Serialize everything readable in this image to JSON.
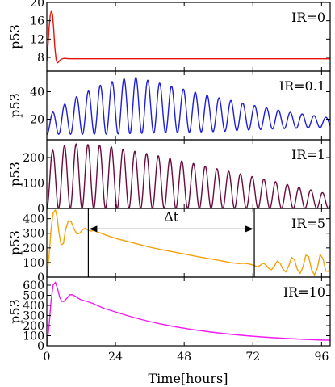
{
  "chart_data": {
    "type": "line",
    "xlabel": "Time[hours]",
    "xlim": [
      0,
      99
    ],
    "xticks": [
      0,
      24,
      48,
      72,
      96
    ],
    "panels": [
      {
        "label": "IR=0",
        "ylabel": "p53",
        "ylim": [
          5,
          20
        ],
        "yticks": [
          8,
          12,
          16,
          20
        ],
        "series": [
          {
            "color": "#e8120c",
            "x": [
              0,
              0.4,
              0.8,
              1.2,
              1.6,
              2.0,
              2.4,
              2.8,
              3.2,
              3.6,
              4.0,
              4.5,
              5.0,
              6,
              7,
              8,
              10,
              15,
              30,
              60,
              99
            ],
            "y": [
              7.2,
              10.5,
              14.5,
              17.2,
              18.2,
              17.4,
              14.2,
              10.2,
              7.8,
              6.8,
              6.9,
              7.3,
              7.6,
              7.8,
              7.75,
              7.7,
              7.7,
              7.7,
              7.7,
              7.7,
              7.7
            ]
          }
        ]
      },
      {
        "label": "IR=0.1",
        "ylabel": "p53",
        "ylim": [
          5,
          55
        ],
        "yticks": [
          20,
          40
        ],
        "series": [
          {
            "color": "#1f1fd6",
            "osc": {
              "t0": 0,
              "period": 4.15,
              "peaks": [
                [
                  0,
                  22
                ],
                [
                  4,
                  28
                ],
                [
                  10,
                  36
                ],
                [
                  20,
                  46
                ],
                [
                  30,
                  51
                ],
                [
                  40,
                  46
                ],
                [
                  55,
                  38
                ],
                [
                  70,
                  31
                ],
                [
                  85,
                  25
                ],
                [
                  99,
                  21
                ]
              ],
              "troughs": [
                [
                  0,
                  9
                ],
                [
                  20,
                  9
                ],
                [
                  40,
                  10
                ],
                [
                  60,
                  11
                ],
                [
                  80,
                  13
                ],
                [
                  99,
                  14
                ]
              ]
            }
          }
        ]
      },
      {
        "label": "IR=1",
        "ylabel": "p53",
        "ylim": [
          0,
          270
        ],
        "yticks": [
          0,
          100,
          200
        ],
        "series": [
          {
            "color": "#6a0c3c",
            "osc": {
              "t0": 0,
              "period": 4.1,
              "peaks": [
                [
                  0,
                  220
                ],
                [
                  8,
                  255
                ],
                [
                  20,
                  248
                ],
                [
                  40,
                  205
                ],
                [
                  60,
                  155
                ],
                [
                  80,
                  105
                ],
                [
                  99,
                  55
                ]
              ],
              "troughs": [
                [
                  0,
                  0
                ],
                [
                  99,
                  0
                ]
              ]
            }
          }
        ]
      },
      {
        "label": "IR=5",
        "ylabel": "p53",
        "ylim": [
          0,
          470
        ],
        "yticks": [
          0,
          100,
          200,
          300,
          400
        ],
        "series": [
          {
            "color": "#f5a10a",
            "x": [
              0,
              0.8,
              1.5,
              2.2,
              3.0,
              3.6,
              4.2,
              5.0,
              5.8,
              6.5,
              7.5,
              8.5,
              9.5,
              10.5,
              11.5,
              12.5,
              13.5,
              14.5,
              15.5,
              16.5,
              17.5,
              19,
              21,
              24,
              28,
              32,
              36,
              40,
              45,
              50,
              55,
              60,
              64,
              67,
              69,
              71,
              72.5,
              73.5,
              74.5,
              75.5,
              76.5,
              77.5,
              78.5,
              79.5,
              80.5,
              81.5,
              82.5,
              83.5,
              84.5,
              85.5,
              86.5,
              87.5,
              88.5,
              89.5,
              90.5,
              91.5,
              92.5,
              93.5,
              94.5,
              95.5,
              96.5,
              97.5,
              98.5,
              99
            ],
            "y": [
              0,
              150,
              330,
              440,
              460,
              410,
              310,
              220,
              230,
              320,
              385,
              380,
              330,
              295,
              300,
              325,
              335,
              320,
              315,
              320,
              310,
              300,
              285,
              265,
              245,
              225,
              205,
              188,
              170,
              150,
              132,
              115,
              100,
              92,
              95,
              88,
              80,
              70,
              80,
              95,
              85,
              60,
              50,
              75,
              110,
              95,
              55,
              35,
              75,
              135,
              120,
              55,
              25,
              70,
              150,
              140,
              50,
              15,
              60,
              155,
              125,
              40,
              40,
              95
            ]
          }
        ],
        "annotations": [
          {
            "type": "arrow",
            "label": "Δt",
            "x1": 14.5,
            "x2": 72.5,
            "y": 330
          }
        ]
      },
      {
        "label": "IR=10",
        "ylabel": "p53",
        "ylim": [
          0,
          680
        ],
        "yticks": [
          0,
          100,
          200,
          300,
          400,
          500,
          600
        ],
        "series": [
          {
            "color": "#f01cf0",
            "x": [
              0,
              0.8,
              1.5,
              2.2,
              3.0,
              3.8,
              4.5,
              5.2,
              6.0,
              7.0,
              8.0,
              9.0,
              10.0,
              11.0,
              12.0,
              14,
              16,
              18,
              20,
              24,
              28,
              32,
              36,
              40,
              45,
              50,
              55,
              60,
              65,
              70,
              75,
              80,
              85,
              90,
              95,
              99
            ],
            "y": [
              0,
              200,
              450,
              600,
              630,
              560,
              480,
              440,
              440,
              470,
              505,
              505,
              490,
              470,
              455,
              440,
              420,
              395,
              370,
              335,
              300,
              268,
              240,
              215,
              188,
              165,
              145,
              127,
              112,
              99,
              88,
              79,
              71,
              64,
              58,
              55
            ]
          }
        ]
      }
    ]
  }
}
